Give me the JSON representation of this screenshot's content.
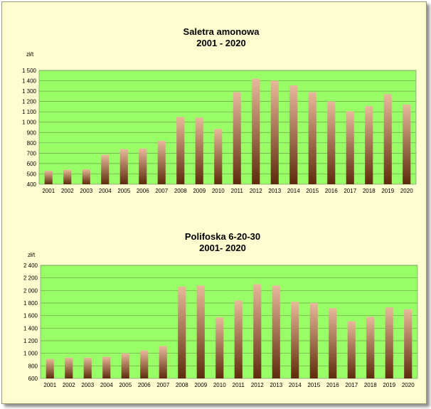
{
  "chart_data": [
    {
      "type": "bar",
      "title": "Saletra amonowa",
      "subtitle": "2001 - 2020",
      "ylabel": "zł/t",
      "categories": [
        "2001",
        "2002",
        "2003",
        "2004",
        "2005",
        "2006",
        "2007",
        "2008",
        "2009",
        "2010",
        "2011",
        "2012",
        "2013",
        "2014",
        "2015",
        "2016",
        "2017",
        "2018",
        "2019",
        "2020"
      ],
      "values": [
        530,
        540,
        545,
        685,
        740,
        745,
        820,
        1050,
        1045,
        935,
        1290,
        1420,
        1400,
        1355,
        1290,
        1200,
        1105,
        1155,
        1270,
        1170
      ],
      "ylim": [
        400,
        1500
      ],
      "yticks": [
        400,
        500,
        600,
        700,
        800,
        900,
        1000,
        1100,
        1200,
        1300,
        1400,
        1500
      ],
      "ytick_labels": [
        "400",
        "500",
        "600",
        "700",
        "800",
        "900",
        "1 000",
        "1 100",
        "1 200",
        "1 300",
        "1 400",
        "1 500"
      ],
      "grid": true
    },
    {
      "type": "bar",
      "title": "Polifoska 6-20-30",
      "subtitle": "2001- 2020",
      "ylabel": "zł/t",
      "categories": [
        "2001",
        "2002",
        "2003",
        "2004",
        "2005",
        "2006",
        "2007",
        "2008",
        "2009",
        "2010",
        "2011",
        "2012",
        "2013",
        "2014",
        "2015",
        "2016",
        "2017",
        "2018",
        "2019",
        "2020"
      ],
      "values": [
        910,
        930,
        930,
        945,
        1000,
        1045,
        1115,
        2060,
        2080,
        1570,
        1840,
        2100,
        2080,
        1820,
        1800,
        1720,
        1510,
        1580,
        1730,
        1700
      ],
      "ylim": [
        600,
        2400
      ],
      "yticks": [
        600,
        800,
        1000,
        1200,
        1400,
        1600,
        1800,
        2000,
        2200,
        2400
      ],
      "ytick_labels": [
        "600",
        "800",
        "1 000",
        "1 200",
        "1 400",
        "1 600",
        "1 800",
        "2 000",
        "2 200",
        "2 400"
      ],
      "grid": true
    }
  ],
  "colors": {
    "page_background": "#fdfdd0",
    "plot_background": "#99ff66",
    "bar_top": "#e8b89a",
    "bar_bottom": "#5e2c0c",
    "gridline": "#6e9e4e",
    "text": "#000000"
  }
}
